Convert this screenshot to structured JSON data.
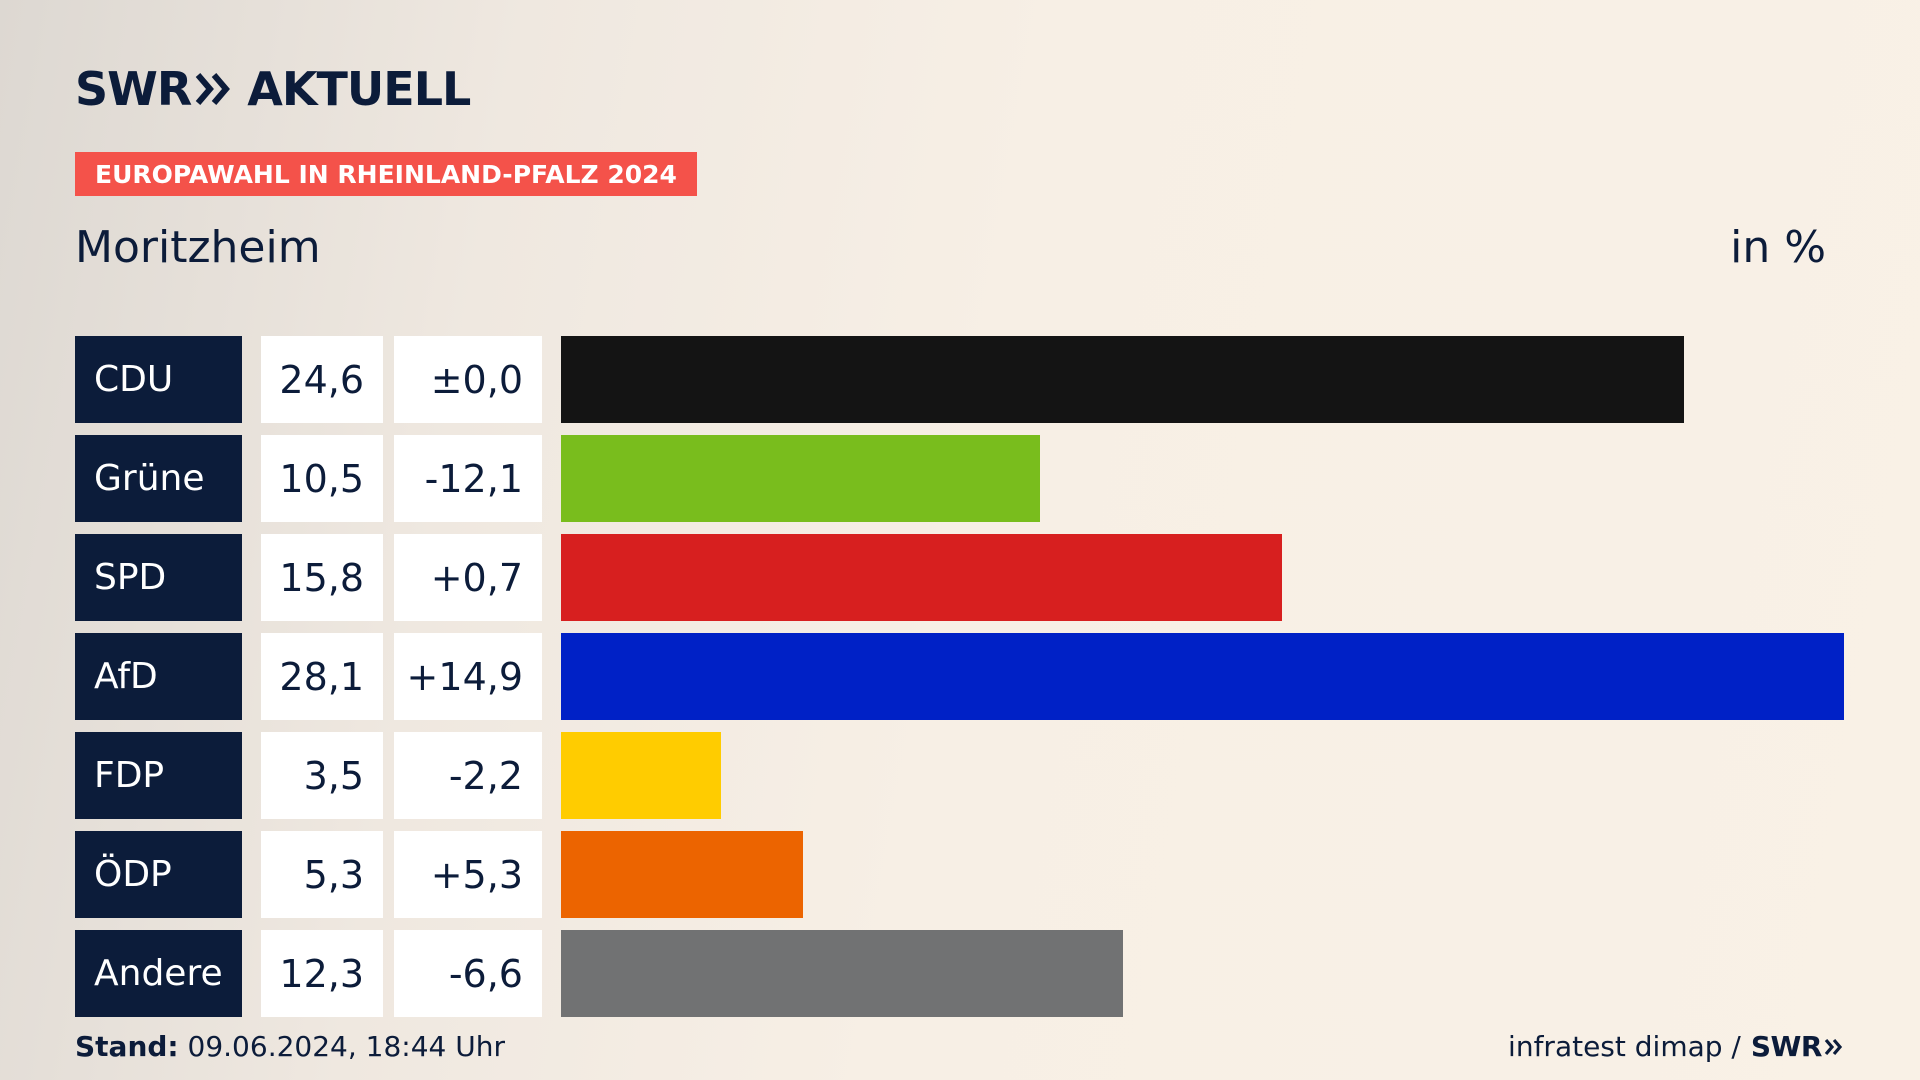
{
  "brand": {
    "left": "SWR",
    "right": "AKTUELL"
  },
  "tag": "EUROPAWAHL IN RHEINLAND-PFALZ 2024",
  "place": "Moritzheim",
  "unit": "in %",
  "colors": {
    "navy": "#0c1c3a",
    "tag": "#f4524a"
  },
  "chart_data": {
    "type": "bar",
    "orientation": "horizontal",
    "title": "Moritzheim",
    "unit": "in %",
    "xlim": [
      0,
      28.1
    ],
    "categories": [
      "CDU",
      "Grüne",
      "SPD",
      "AfD",
      "FDP",
      "ÖDP",
      "Andere"
    ],
    "values": [
      24.6,
      10.5,
      15.8,
      28.1,
      3.5,
      5.3,
      12.3
    ],
    "value_labels": [
      "24,6",
      "10,5",
      "15,8",
      "28,1",
      "3,5",
      "5,3",
      "12,3"
    ],
    "diff_labels": [
      "±0,0",
      "-12,1",
      "+0,7",
      "+14,9",
      "-2,2",
      "+5,3",
      "-6,6"
    ],
    "diffs": [
      0.0,
      -12.1,
      0.7,
      14.9,
      -2.2,
      5.3,
      -6.6
    ],
    "bar_colors": [
      "#141414",
      "#79bd1d",
      "#d71f1f",
      "#0021c6",
      "#ffcc00",
      "#ec6400",
      "#717273"
    ]
  },
  "footer": {
    "stand_label": "Stand:",
    "stand_value": "09.06.2024, 18:44 Uhr",
    "source": "infratest dimap /",
    "source_brand": "SWR"
  }
}
